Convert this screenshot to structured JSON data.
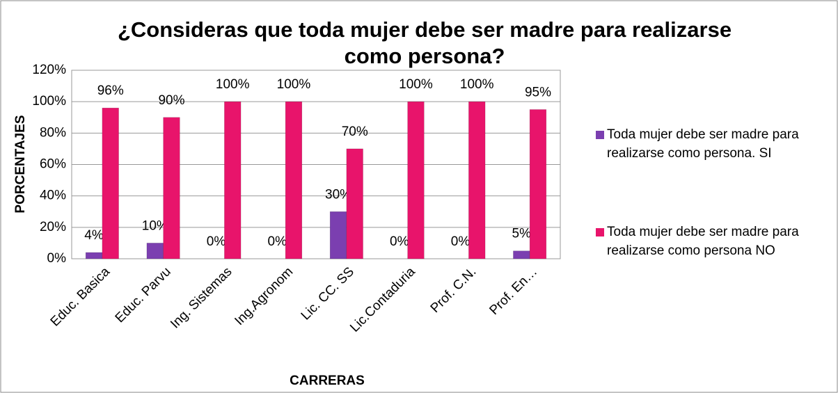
{
  "chart_data": {
    "type": "bar",
    "title": "¿Consideras que toda mujer debe ser madre para realizarse como persona?",
    "x_label": "CARRERAS",
    "y_label": "PORCENTAJES",
    "categories": [
      "Educ. Basica",
      "Educ. Parvu",
      "Ing. Sistemas",
      "Ing.Agronom",
      "Lic. CC. SS",
      "Lic.Contaduria",
      "Prof. C.N.",
      "Prof. En…"
    ],
    "series": [
      {
        "name": "Toda mujer debe ser madre para realizarse como persona. SI",
        "color": "#7b3fb0",
        "values": [
          4,
          10,
          0,
          0,
          30,
          0,
          0,
          5
        ],
        "value_labels": [
          "4%",
          "10%",
          "0%",
          "0%",
          "30%",
          "0%",
          "0%",
          "5%"
        ]
      },
      {
        "name": "Toda mujer debe ser madre para realizarse como persona NO",
        "color": "#e8146b",
        "values": [
          96,
          90,
          100,
          100,
          70,
          100,
          100,
          95
        ],
        "value_labels": [
          "96%",
          "90%",
          "100%",
          "100%",
          "70%",
          "100%",
          "100%",
          "95%"
        ]
      }
    ],
    "ylim": [
      0,
      120
    ],
    "yticks": [
      {
        "value": 0,
        "label": "0%"
      },
      {
        "value": 20,
        "label": "20%"
      },
      {
        "value": 40,
        "label": "40%"
      },
      {
        "value": 60,
        "label": "60%"
      },
      {
        "value": 80,
        "label": "80%"
      },
      {
        "value": 100,
        "label": "100%"
      },
      {
        "value": 120,
        "label": "120%"
      }
    ],
    "grid": true,
    "legend": "right"
  }
}
